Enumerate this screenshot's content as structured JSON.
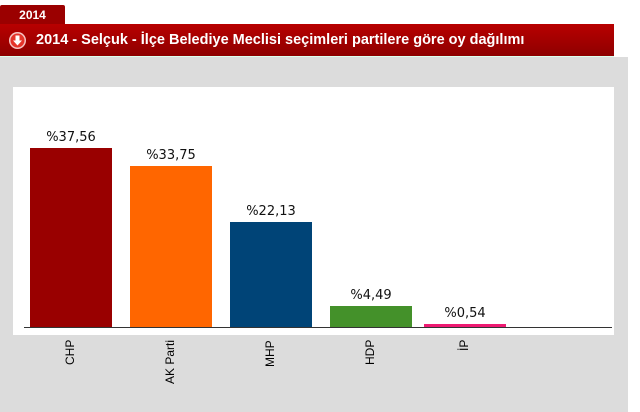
{
  "tab": {
    "label": "2014"
  },
  "header": {
    "title": "2014 - Selçuk - İlçe Belediye Meclisi seçimleri partilere göre oy dağılımı",
    "icon": "download-circle-icon"
  },
  "colors": {
    "header": "#9b0000",
    "panel": "#dcdcdc"
  },
  "chart_data": {
    "type": "bar",
    "title": "2014 - Selçuk - İlçe Belediye Meclisi seçimleri partilere göre oy dağılımı",
    "categories": [
      "CHP",
      "AK Parti",
      "MHP",
      "HDP",
      "İP"
    ],
    "values": [
      37.56,
      33.75,
      22.13,
      4.49,
      0.54
    ],
    "labels": [
      "%37,56",
      "%33,75",
      "%22,13",
      "%4,49",
      "%0,54"
    ],
    "colors": [
      "#990000",
      "#ff6600",
      "#004477",
      "#44912a",
      "#ee1a72"
    ],
    "xlabel": "",
    "ylabel": "",
    "ylim": [
      0,
      40
    ],
    "grid": false,
    "legend": "none"
  }
}
